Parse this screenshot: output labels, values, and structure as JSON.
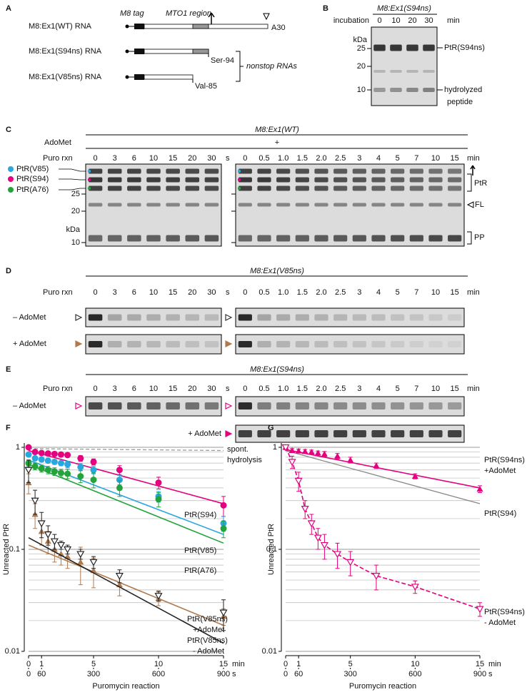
{
  "lanes_s": [
    "0",
    "3",
    "6",
    "10",
    "15",
    "20",
    "30"
  ],
  "unit_s": "s",
  "lanes_min": [
    "0",
    "0.5",
    "1.0",
    "1.5",
    "2.0",
    "2.5",
    "3",
    "4",
    "5",
    "7",
    "10",
    "15"
  ],
  "unit_min": "min",
  "puro_label": "Puro rxn",
  "panel_a": {
    "letter": "A",
    "tag_label": "M8 tag",
    "region_label": "MTO1 region",
    "constructs": [
      {
        "name": "M8:Ex1(WT) RNA",
        "end": "A30"
      },
      {
        "name": "M8:Ex1(S94ns) RNA",
        "end": "Ser-94"
      },
      {
        "name": "M8:Ex1(V85ns) RNA",
        "end": "Val-85"
      }
    ],
    "bracket_label": "nonstop RNAs"
  },
  "panel_b": {
    "letter": "B",
    "title": "M8:Ex1(S94ns)",
    "incubation_label": "incubation",
    "lanes": [
      "0",
      "10",
      "20",
      "30"
    ],
    "lane_unit": "min",
    "mw_unit": "kDa",
    "mw_markers": [
      "25",
      "20",
      "10"
    ],
    "top_band": "PtR(S94ns)",
    "bottom_band": [
      "hydrolyzed",
      "peptide"
    ]
  },
  "panel_c": {
    "letter": "C",
    "title": "M8:Ex1(WT)",
    "adomet_label": "AdoMet",
    "adomet_state": "+",
    "bands": [
      "PtR(V85)",
      "PtR(S94)",
      "PtR(A76)"
    ],
    "mw_markers": [
      "25",
      "20",
      "kDa",
      "10"
    ],
    "right_labels": [
      "PtR",
      "FL",
      "PP"
    ]
  },
  "panel_d": {
    "letter": "D",
    "title": "M8:Ex1(V85ns)",
    "rows": [
      "– AdoMet",
      "+ AdoMet"
    ]
  },
  "panel_e": {
    "letter": "E",
    "title": "M8:Ex1(S94ns)",
    "rows": [
      "– AdoMet",
      "+ AdoMet"
    ]
  },
  "chart_data": [
    {
      "type": "line",
      "letter": "F",
      "log_y": true,
      "grid": true,
      "xlim": [
        0,
        15
      ],
      "xticks": [
        0,
        1,
        5,
        10,
        15
      ],
      "xunit": "min",
      "x2lim": [
        0,
        900
      ],
      "x2ticks": [
        0,
        60,
        300,
        600,
        900
      ],
      "x2unit": "s",
      "xlabel": "Puromycin reaction",
      "ylabel": "Unreacted PtR",
      "ylim": [
        0.01,
        1
      ],
      "yticks": [
        0.01,
        0.1,
        1
      ],
      "yminor": [
        0.02,
        0.03,
        0.04,
        0.05,
        0.06,
        0.07,
        0.08,
        0.09,
        0.2,
        0.3,
        0.4,
        0.5,
        0.6,
        0.7,
        0.8,
        0.9
      ],
      "x": [
        0,
        0.5,
        1,
        1.5,
        2,
        2.5,
        3,
        4,
        5,
        7,
        10,
        15
      ],
      "series": [
        {
          "name": "PtR(S94)",
          "color": "#e4007f",
          "marker": "circle",
          "values": [
            1.0,
            0.9,
            0.88,
            0.87,
            0.86,
            0.85,
            0.84,
            0.78,
            0.72,
            0.6,
            0.45,
            0.27
          ],
          "errors": [
            0.03,
            0.03,
            0.03,
            0.03,
            0.03,
            0.03,
            0.04,
            0.05,
            0.05,
            0.06,
            0.06,
            0.06
          ],
          "fit": {
            "x": [
              0,
              15
            ],
            "values": [
              0.93,
              0.28
            ]
          }
        },
        {
          "name": "PtR(V85)",
          "color": "#2aa7df",
          "marker": "circle",
          "values": [
            0.85,
            0.78,
            0.76,
            0.74,
            0.72,
            0.7,
            0.68,
            0.64,
            0.6,
            0.48,
            0.33,
            0.18
          ],
          "errors": [
            0.04,
            0.04,
            0.04,
            0.04,
            0.04,
            0.04,
            0.05,
            0.05,
            0.05,
            0.05,
            0.04,
            0.03
          ],
          "fit": {
            "x": [
              0,
              15
            ],
            "values": [
              0.75,
              0.14
            ]
          }
        },
        {
          "name": "PtR(A76)",
          "color": "#23a33b",
          "marker": "circle",
          "values": [
            0.7,
            0.65,
            0.62,
            0.6,
            0.58,
            0.56,
            0.55,
            0.52,
            0.48,
            0.4,
            0.31,
            0.16
          ],
          "errors": [
            0.05,
            0.05,
            0.05,
            0.05,
            0.05,
            0.05,
            0.06,
            0.07,
            0.08,
            0.07,
            0.05,
            0.03
          ],
          "fit": {
            "x": [
              0,
              15
            ],
            "values": [
              0.68,
              0.115
            ]
          }
        },
        {
          "name": "PtR(V85ns)",
          "name_line2": "+AdoMet",
          "color": "#b07a4e",
          "marker": "triangle-up",
          "values": [
            0.45,
            0.22,
            0.15,
            0.12,
            0.1,
            0.09,
            0.085,
            0.075,
            0.062,
            0.045,
            0.033,
            0.022
          ],
          "errors": [
            0.1,
            0.06,
            0.04,
            0.03,
            0.025,
            0.02,
            0.02,
            0.03,
            0.02,
            0.01,
            0.005,
            0.004
          ],
          "fit": {
            "x": [
              0,
              15
            ],
            "values": [
              0.11,
              0.018
            ]
          }
        },
        {
          "name": "PtR(V85ns)",
          "name_line2": "- AdoMet",
          "color": "#222222",
          "marker": "triangle-down-open",
          "values": [
            0.6,
            0.3,
            0.18,
            0.14,
            0.12,
            0.11,
            0.1,
            0.09,
            0.075,
            0.055,
            0.035,
            0.024
          ],
          "errors": [
            0.15,
            0.08,
            0.05,
            0.03,
            0.02,
            0.01,
            0.01,
            0.01,
            0.01,
            0.008,
            0.004,
            0.008
          ],
          "fit": {
            "x": [
              0,
              15
            ],
            "values": [
              0.13,
              0.012
            ]
          }
        }
      ],
      "reference_lines": [
        {
          "name": "spont.",
          "name_line2": "hydrolysis",
          "color": "#999999",
          "dashed": true,
          "x": [
            0,
            15
          ],
          "values": [
            0.97,
            0.93
          ]
        }
      ]
    },
    {
      "type": "line",
      "letter": "G",
      "log_y": true,
      "grid": true,
      "xlim": [
        0,
        15
      ],
      "xticks": [
        0,
        1,
        5,
        10,
        15
      ],
      "xunit": "min",
      "x2lim": [
        0,
        900
      ],
      "x2ticks": [
        0,
        60,
        300,
        600,
        900
      ],
      "x2unit": "s",
      "xlabel": "Puromycin reaction",
      "ylabel": "Unreacted PtR",
      "ylim": [
        0.01,
        1
      ],
      "yticks": [
        0.01,
        0.1,
        1
      ],
      "yminor": [
        0.02,
        0.03,
        0.04,
        0.05,
        0.06,
        0.07,
        0.08,
        0.09,
        0.2,
        0.3,
        0.4,
        0.5,
        0.6,
        0.7,
        0.8,
        0.9
      ],
      "x": [
        0,
        0.5,
        1,
        1.5,
        2,
        2.5,
        3,
        4,
        5,
        7,
        10,
        15
      ],
      "series": [
        {
          "name": "PtR(S94ns)",
          "name_line2": "+AdoMet",
          "color": "#e4007f",
          "marker": "triangle-up",
          "values": [
            1.0,
            0.93,
            0.92,
            0.91,
            0.9,
            0.88,
            0.86,
            0.82,
            0.75,
            0.66,
            0.52,
            0.39
          ],
          "errors": [
            0.05,
            0.04,
            0.04,
            0.04,
            0.04,
            0.04,
            0.05,
            0.05,
            0.05,
            0.04,
            0.03,
            0.03
          ],
          "fit": {
            "x": [
              0,
              15
            ],
            "values": [
              0.95,
              0.4
            ]
          }
        },
        {
          "name": "PtR(S94ns)",
          "name_line2": "- AdoMet",
          "color": "#e4007f",
          "marker": "triangle-down-open",
          "connect": "dashed",
          "values": [
            1.0,
            0.72,
            0.47,
            0.25,
            0.18,
            0.13,
            0.11,
            0.09,
            0.075,
            0.055,
            0.043,
            0.026
          ],
          "errors": [
            0.05,
            0.1,
            0.1,
            0.05,
            0.04,
            0.03,
            0.03,
            0.025,
            0.02,
            0.015,
            0.006,
            0.004
          ]
        }
      ],
      "reference_lines": [
        {
          "name": "PtR(S94)",
          "color": "#888888",
          "dashed": false,
          "x": [
            0,
            15
          ],
          "values": [
            0.93,
            0.28
          ]
        }
      ]
    }
  ]
}
